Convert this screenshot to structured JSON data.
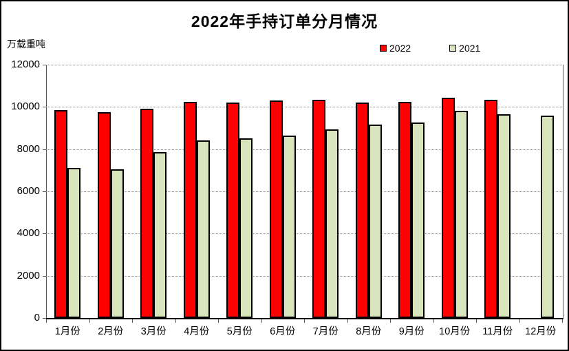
{
  "chart_data": {
    "type": "bar",
    "title": "2022年手持订单分月情况",
    "ylabel": "万载重吨",
    "categories": [
      "1月份",
      "2月份",
      "3月份",
      "4月份",
      "5月份",
      "6月份",
      "7月份",
      "8月份",
      "9月份",
      "10月份",
      "11月份",
      "12月份"
    ],
    "series": [
      {
        "name": "2022",
        "color": "#FF0000",
        "values": [
          9850,
          9750,
          9900,
          10250,
          10200,
          10300,
          10350,
          10200,
          10250,
          10450,
          10350,
          null
        ]
      },
      {
        "name": "2021",
        "color": "#D8E4BC",
        "values": [
          7100,
          7050,
          7850,
          8400,
          8500,
          8650,
          8950,
          9150,
          9250,
          9800,
          9650,
          9600
        ]
      }
    ],
    "ylim": [
      0,
      12000
    ],
    "ytick_interval": 2000,
    "grid": true,
    "legend_position": "top-right",
    "colors": {
      "bar_border": "#000000",
      "gridline": "#909090",
      "axis": "#595959",
      "frame_border": "#000000"
    }
  }
}
